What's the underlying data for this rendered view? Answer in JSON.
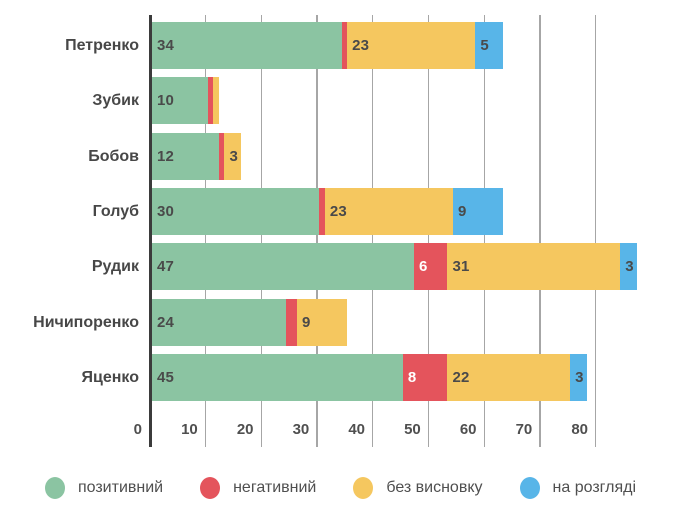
{
  "chart_data": {
    "type": "bar",
    "orientation": "horizontal",
    "stacked": true,
    "title": "",
    "xlabel": "",
    "ylabel": "",
    "categories": [
      "Петренко",
      "Зубик",
      "Бобов",
      "Голуб",
      "Рудик",
      "Ничипоренко",
      "Яценко"
    ],
    "series": [
      {
        "name": "позитивний",
        "color": "#8BC4A2",
        "label_color": "#4a4a4a",
        "values": [
          34,
          10,
          12,
          30,
          47,
          24,
          45
        ]
      },
      {
        "name": "негативний",
        "color": "#E4545C",
        "label_color": "#ffffff",
        "values": [
          1,
          1,
          1,
          1,
          6,
          2,
          8
        ]
      },
      {
        "name": "без висновку",
        "color": "#F5C75F",
        "label_color": "#4a4a4a",
        "values": [
          23,
          1,
          3,
          23,
          31,
          9,
          22
        ]
      },
      {
        "name": "на розгляді",
        "color": "#58B5E8",
        "label_color": "#4a4a4a",
        "values": [
          5,
          0,
          0,
          9,
          3,
          0,
          3
        ]
      }
    ],
    "x_ticks": [
      0,
      10,
      20,
      30,
      40,
      50,
      60,
      70,
      80
    ],
    "xlim": [
      0,
      91.5
    ],
    "grid": true,
    "legend_position": "bottom",
    "min_label_value": 3
  },
  "style": {
    "grid_color": "#a6a6a6",
    "axis_line_color": "#3b3b3b",
    "value_label_color": "#4a4a4a",
    "category_label_color": "#474747",
    "tick_label_color": "#4f4f4f",
    "legend_text_color": "#4f4f4f",
    "background": "#ffffff"
  }
}
